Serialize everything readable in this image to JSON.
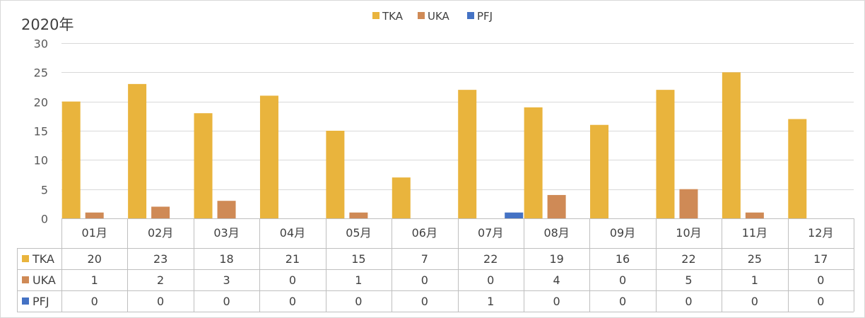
{
  "chart_data": {
    "type": "bar",
    "title": "2020年",
    "categories": [
      "01月",
      "02月",
      "03月",
      "04月",
      "05月",
      "06月",
      "07月",
      "08月",
      "09月",
      "10月",
      "11月",
      "12月"
    ],
    "series": [
      {
        "name": "TKA",
        "color": "#E9B43D",
        "values": [
          20,
          23,
          18,
          21,
          15,
          7,
          22,
          19,
          16,
          22,
          25,
          17
        ]
      },
      {
        "name": "UKA",
        "color": "#CF8A56",
        "values": [
          1,
          2,
          3,
          0,
          1,
          0,
          0,
          4,
          0,
          5,
          1,
          0
        ]
      },
      {
        "name": "PFJ",
        "color": "#4472C4",
        "values": [
          0,
          0,
          0,
          0,
          0,
          0,
          1,
          0,
          0,
          0,
          0,
          0
        ]
      }
    ],
    "ylim": [
      0,
      30
    ],
    "yticks": [
      0,
      5,
      10,
      15,
      20,
      25,
      30
    ],
    "grid": true,
    "legend": "top-center",
    "data_table": true,
    "xlabel": "",
    "ylabel": ""
  }
}
